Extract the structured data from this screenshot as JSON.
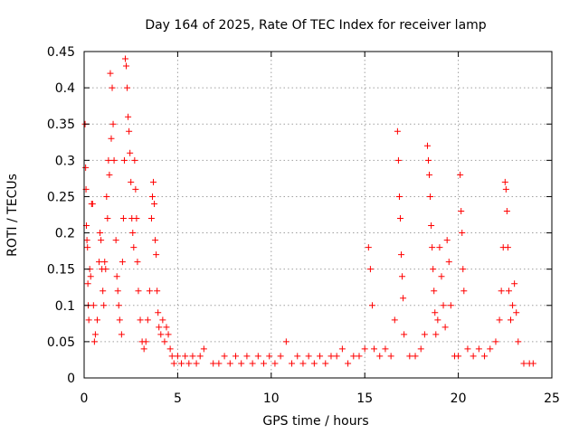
{
  "chart_data": {
    "type": "scatter",
    "title": "Day 164 of 2025, Rate Of TEC Index for receiver lamp",
    "xlabel": "GPS time / hours",
    "ylabel": "ROTI / TECUs",
    "xlim": [
      0,
      25
    ],
    "ylim": [
      0,
      0.45
    ],
    "xticks": [
      0,
      5,
      10,
      15,
      20,
      25
    ],
    "yticks": [
      0,
      0.05,
      0.1,
      0.15,
      0.2,
      0.25,
      0.3,
      0.35,
      0.4,
      0.45
    ],
    "xtick_labels": [
      "0",
      "5",
      "10",
      "15",
      "20",
      "25"
    ],
    "ytick_labels": [
      "0",
      "0.05",
      "0.1",
      "0.15",
      "0.2",
      "0.25",
      "0.3",
      "0.35",
      "0.4",
      "0.45"
    ],
    "grid": true,
    "marker": "plus",
    "color": "#ff0000",
    "series": [
      {
        "points": [
          [
            0.05,
            0.35
          ],
          [
            0.08,
            0.29
          ],
          [
            0.1,
            0.26
          ],
          [
            0.12,
            0.21
          ],
          [
            0.15,
            0.19
          ],
          [
            0.18,
            0.18
          ],
          [
            0.2,
            0.13
          ],
          [
            0.22,
            0.1
          ],
          [
            0.25,
            0.08
          ],
          [
            0.3,
            0.15
          ],
          [
            0.35,
            0.14
          ],
          [
            0.4,
            0.24
          ],
          [
            0.45,
            0.24
          ],
          [
            0.5,
            0.1
          ],
          [
            0.55,
            0.05
          ],
          [
            0.6,
            0.06
          ],
          [
            0.7,
            0.08
          ],
          [
            0.8,
            0.16
          ],
          [
            0.85,
            0.2
          ],
          [
            0.9,
            0.19
          ],
          [
            0.95,
            0.15
          ],
          [
            1.0,
            0.12
          ],
          [
            1.05,
            0.1
          ],
          [
            1.1,
            0.16
          ],
          [
            1.15,
            0.15
          ],
          [
            1.2,
            0.25
          ],
          [
            1.25,
            0.22
          ],
          [
            1.3,
            0.3
          ],
          [
            1.35,
            0.28
          ],
          [
            1.4,
            0.42
          ],
          [
            1.45,
            0.33
          ],
          [
            1.5,
            0.4
          ],
          [
            1.55,
            0.35
          ],
          [
            1.6,
            0.3
          ],
          [
            1.7,
            0.19
          ],
          [
            1.75,
            0.14
          ],
          [
            1.8,
            0.12
          ],
          [
            1.85,
            0.1
          ],
          [
            1.9,
            0.08
          ],
          [
            2.0,
            0.06
          ],
          [
            2.05,
            0.16
          ],
          [
            2.1,
            0.22
          ],
          [
            2.15,
            0.3
          ],
          [
            2.2,
            0.44
          ],
          [
            2.25,
            0.43
          ],
          [
            2.3,
            0.4
          ],
          [
            2.35,
            0.36
          ],
          [
            2.4,
            0.34
          ],
          [
            2.45,
            0.31
          ],
          [
            2.5,
            0.27
          ],
          [
            2.55,
            0.22
          ],
          [
            2.6,
            0.2
          ],
          [
            2.65,
            0.18
          ],
          [
            2.7,
            0.3
          ],
          [
            2.75,
            0.26
          ],
          [
            2.8,
            0.22
          ],
          [
            2.85,
            0.16
          ],
          [
            2.9,
            0.12
          ],
          [
            3.0,
            0.08
          ],
          [
            3.1,
            0.05
          ],
          [
            3.2,
            0.04
          ],
          [
            3.3,
            0.05
          ],
          [
            3.4,
            0.08
          ],
          [
            3.5,
            0.12
          ],
          [
            3.6,
            0.22
          ],
          [
            3.65,
            0.25
          ],
          [
            3.7,
            0.27
          ],
          [
            3.75,
            0.24
          ],
          [
            3.8,
            0.19
          ],
          [
            3.85,
            0.17
          ],
          [
            3.9,
            0.12
          ],
          [
            3.95,
            0.09
          ],
          [
            4.0,
            0.07
          ],
          [
            4.1,
            0.06
          ],
          [
            4.2,
            0.08
          ],
          [
            4.3,
            0.05
          ],
          [
            4.4,
            0.07
          ],
          [
            4.5,
            0.06
          ],
          [
            4.6,
            0.04
          ],
          [
            4.7,
            0.03
          ],
          [
            4.8,
            0.02
          ],
          [
            5.0,
            0.03
          ],
          [
            5.2,
            0.02
          ],
          [
            5.4,
            0.03
          ],
          [
            5.6,
            0.02
          ],
          [
            5.8,
            0.03
          ],
          [
            6.0,
            0.02
          ],
          [
            6.2,
            0.03
          ],
          [
            6.4,
            0.04
          ],
          [
            6.9,
            0.02
          ],
          [
            7.2,
            0.02
          ],
          [
            7.5,
            0.03
          ],
          [
            7.8,
            0.02
          ],
          [
            8.1,
            0.03
          ],
          [
            8.4,
            0.02
          ],
          [
            8.7,
            0.03
          ],
          [
            9.0,
            0.02
          ],
          [
            9.3,
            0.03
          ],
          [
            9.6,
            0.02
          ],
          [
            9.9,
            0.03
          ],
          [
            10.2,
            0.02
          ],
          [
            10.5,
            0.03
          ],
          [
            10.8,
            0.05
          ],
          [
            11.1,
            0.02
          ],
          [
            11.4,
            0.03
          ],
          [
            11.7,
            0.02
          ],
          [
            12.0,
            0.03
          ],
          [
            12.3,
            0.02
          ],
          [
            12.6,
            0.03
          ],
          [
            12.9,
            0.02
          ],
          [
            13.2,
            0.03
          ],
          [
            13.5,
            0.03
          ],
          [
            13.8,
            0.04
          ],
          [
            14.1,
            0.02
          ],
          [
            14.4,
            0.03
          ],
          [
            14.7,
            0.03
          ],
          [
            15.0,
            0.04
          ],
          [
            15.2,
            0.18
          ],
          [
            15.3,
            0.15
          ],
          [
            15.4,
            0.1
          ],
          [
            15.5,
            0.04
          ],
          [
            15.8,
            0.03
          ],
          [
            16.1,
            0.04
          ],
          [
            16.4,
            0.03
          ],
          [
            16.6,
            0.08
          ],
          [
            16.75,
            0.34
          ],
          [
            16.8,
            0.3
          ],
          [
            16.85,
            0.25
          ],
          [
            16.9,
            0.22
          ],
          [
            16.95,
            0.17
          ],
          [
            17.0,
            0.14
          ],
          [
            17.05,
            0.11
          ],
          [
            17.1,
            0.06
          ],
          [
            17.4,
            0.03
          ],
          [
            17.7,
            0.03
          ],
          [
            18.0,
            0.04
          ],
          [
            18.2,
            0.06
          ],
          [
            18.35,
            0.32
          ],
          [
            18.4,
            0.3
          ],
          [
            18.45,
            0.28
          ],
          [
            18.5,
            0.25
          ],
          [
            18.55,
            0.21
          ],
          [
            18.6,
            0.18
          ],
          [
            18.65,
            0.15
          ],
          [
            18.7,
            0.12
          ],
          [
            18.75,
            0.09
          ],
          [
            18.8,
            0.06
          ],
          [
            18.9,
            0.08
          ],
          [
            19.0,
            0.18
          ],
          [
            19.1,
            0.14
          ],
          [
            19.2,
            0.1
          ],
          [
            19.3,
            0.07
          ],
          [
            19.4,
            0.19
          ],
          [
            19.5,
            0.16
          ],
          [
            19.6,
            0.1
          ],
          [
            19.8,
            0.03
          ],
          [
            20.0,
            0.03
          ],
          [
            20.1,
            0.28
          ],
          [
            20.15,
            0.23
          ],
          [
            20.2,
            0.2
          ],
          [
            20.25,
            0.15
          ],
          [
            20.3,
            0.12
          ],
          [
            20.5,
            0.04
          ],
          [
            20.8,
            0.03
          ],
          [
            21.1,
            0.04
          ],
          [
            21.4,
            0.03
          ],
          [
            21.7,
            0.04
          ],
          [
            22.0,
            0.05
          ],
          [
            22.2,
            0.08
          ],
          [
            22.3,
            0.12
          ],
          [
            22.4,
            0.18
          ],
          [
            22.5,
            0.27
          ],
          [
            22.55,
            0.26
          ],
          [
            22.6,
            0.23
          ],
          [
            22.65,
            0.18
          ],
          [
            22.7,
            0.12
          ],
          [
            22.8,
            0.08
          ],
          [
            22.9,
            0.1
          ],
          [
            23.0,
            0.13
          ],
          [
            23.1,
            0.09
          ],
          [
            23.2,
            0.05
          ],
          [
            23.5,
            0.02
          ],
          [
            23.8,
            0.02
          ],
          [
            24.0,
            0.02
          ]
        ]
      }
    ]
  }
}
